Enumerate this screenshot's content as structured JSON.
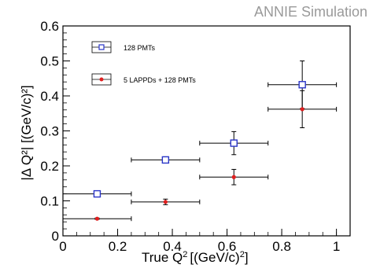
{
  "chart_data": {
    "type": "scatter",
    "annotation": "ANNIE Simulation",
    "xlabel_main": "True Q",
    "xlabel_units": "[(GeV/c)",
    "ylabel": "|Δ Q²| [(GeV/c)²]",
    "xlim": [
      0,
      1.05
    ],
    "ylim": [
      0,
      0.6
    ],
    "x_ticks": [
      "0",
      "0.2",
      "0.4",
      "0.6",
      "0.8",
      "1"
    ],
    "y_ticks": [
      "0",
      "0.1",
      "0.2",
      "0.3",
      "0.4",
      "0.5",
      "0.6"
    ],
    "grid": false,
    "legend_position": "top-left",
    "series": [
      {
        "name": "128 PMTs",
        "marker": "open-square",
        "color": "#2a35c8",
        "points": [
          {
            "x": 0.125,
            "y": 0.12,
            "xerr": 0.125,
            "yerr": 0.004
          },
          {
            "x": 0.375,
            "y": 0.217,
            "xerr": 0.125,
            "yerr": 0.009
          },
          {
            "x": 0.625,
            "y": 0.265,
            "xerr": 0.125,
            "yerr": 0.033
          },
          {
            "x": 0.875,
            "y": 0.432,
            "xerr": 0.125,
            "yerr": 0.068
          }
        ]
      },
      {
        "name": "5 LAPPDs + 128 PMTs",
        "marker": "filled-circle",
        "color": "#e02020",
        "points": [
          {
            "x": 0.125,
            "y": 0.049,
            "xerr": 0.125,
            "yerr": 0.002
          },
          {
            "x": 0.375,
            "y": 0.097,
            "xerr": 0.125,
            "yerr": 0.008
          },
          {
            "x": 0.625,
            "y": 0.168,
            "xerr": 0.125,
            "yerr": 0.022
          },
          {
            "x": 0.875,
            "y": 0.362,
            "xerr": 0.125,
            "yerr": 0.053
          }
        ]
      }
    ]
  }
}
